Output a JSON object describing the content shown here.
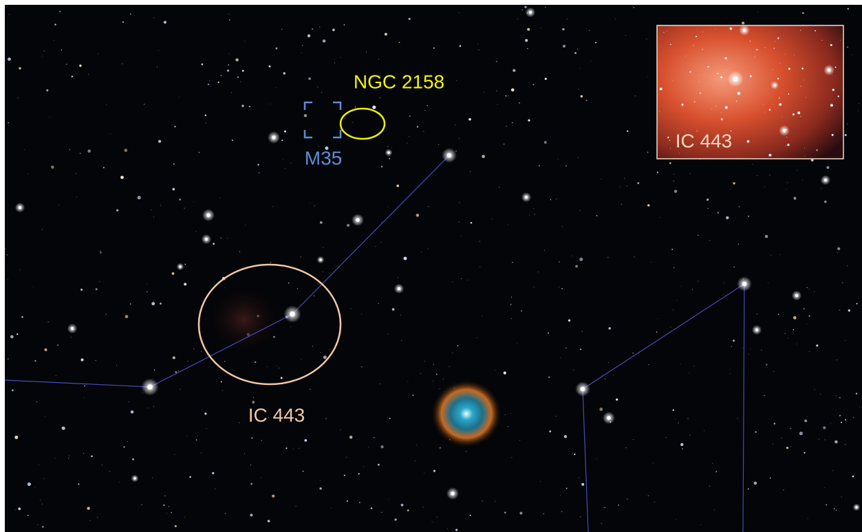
{
  "annotations": [
    {
      "label": "NGC 2158"
    },
    {
      "label": "M35"
    },
    {
      "label": "IC 443"
    }
  ],
  "inset": {
    "label": "IC 443"
  }
}
